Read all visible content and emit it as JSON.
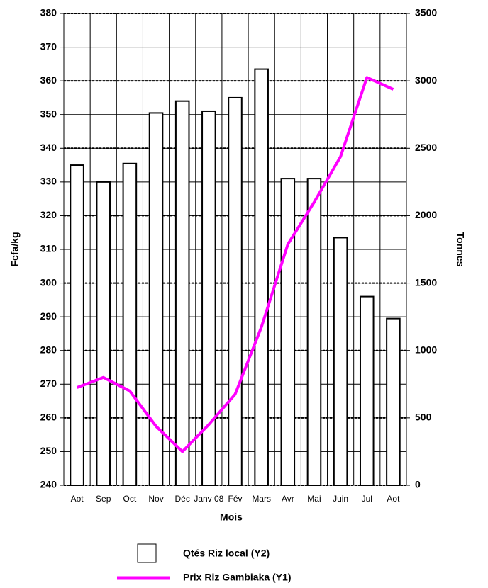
{
  "chart_data": {
    "type": "bar-line",
    "x_label": "Mois",
    "y_label": "Fcfa/kg",
    "y2_label": "Tonnes",
    "categories": [
      "Aot",
      "Sep",
      "Oct",
      "Nov",
      "Déc",
      "Janv 08",
      "Fév",
      "Mars",
      "Avr",
      "Mai",
      "Juin",
      "Jul",
      "Aot"
    ],
    "series": [
      {
        "name": "Qtés Riz local (Y2)",
        "type": "bar",
        "axis": "y2",
        "color": "#ffffff",
        "values": [
          2375,
          2250,
          2387,
          2762,
          2850,
          2775,
          2875,
          3087,
          2275,
          2275,
          1837,
          1400,
          1237
        ]
      },
      {
        "name": "Prix Riz Gambiaka (Y1)",
        "type": "line",
        "axis": "y",
        "color": "#ff00ff",
        "values": [
          269,
          272,
          268,
          257.5,
          250,
          258,
          267,
          287,
          311.5,
          324,
          337.5,
          361,
          357.5
        ]
      }
    ],
    "ylim": [
      240,
      380
    ],
    "yticks": [
      240,
      250,
      260,
      270,
      280,
      290,
      300,
      310,
      320,
      330,
      340,
      350,
      360,
      370,
      380
    ],
    "y2lim": [
      0,
      3500
    ],
    "y2ticks": [
      0,
      500,
      1000,
      1500,
      2000,
      2500,
      3000,
      3500
    ],
    "grid": true
  }
}
